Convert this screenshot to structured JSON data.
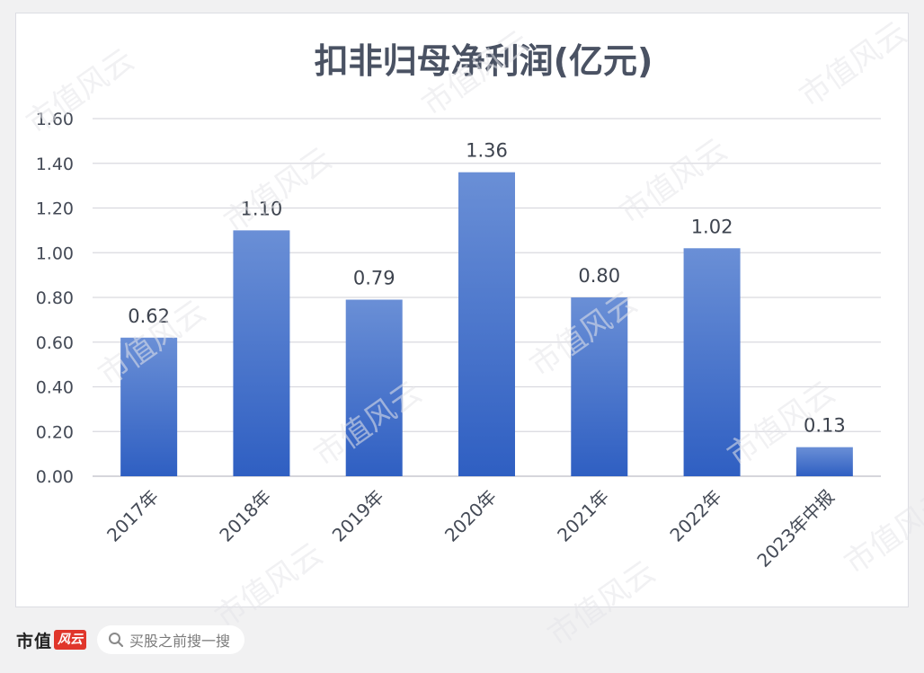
{
  "chart_data": {
    "type": "bar",
    "title": "扣非归母净利润(亿元)",
    "categories": [
      "2017年",
      "2018年",
      "2019年",
      "2020年",
      "2021年",
      "2022年",
      "2023年中报"
    ],
    "values": [
      0.62,
      1.1,
      0.79,
      1.36,
      0.8,
      1.02,
      0.13
    ],
    "data_labels": [
      "0.62",
      "1.10",
      "0.79",
      "1.36",
      "0.80",
      "1.02",
      "0.13"
    ],
    "ylim": [
      0,
      1.6
    ],
    "yticks": [
      "0.00",
      "0.20",
      "0.40",
      "0.60",
      "0.80",
      "1.00",
      "1.20",
      "1.40",
      "1.60"
    ],
    "grid": true,
    "legend": "none",
    "bar_color_top": "#6a8fd6",
    "bar_color_bottom": "#2f5fc2"
  },
  "watermark_text": "市值风云",
  "footer": {
    "brand_name": "市值",
    "brand_mark": "风云",
    "search_placeholder": "买股之前搜一搜",
    "search_icon": "search-icon"
  }
}
